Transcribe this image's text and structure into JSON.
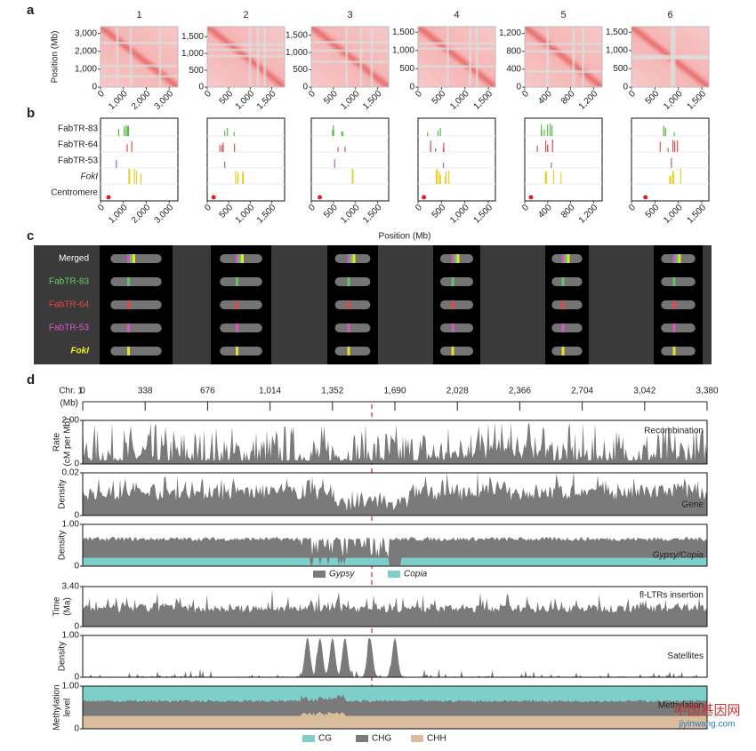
{
  "panel_a": {
    "label": "a",
    "y_label": "Position (Mb)",
    "plots": [
      {
        "title": "1",
        "lim": [
          0,
          3380
        ],
        "ticks": [
          0,
          {
            "value": 1000,
            "label": "1,000"
          },
          {
            "value": 2000,
            "label": "2,000"
          },
          {
            "value": 3000,
            "label": "3,000"
          }
        ]
      },
      {
        "title": "2",
        "lim": [
          0,
          1800
        ],
        "ticks": [
          0,
          500,
          {
            "value": 1000,
            "label": "1,000"
          },
          {
            "value": 1500,
            "label": "1,500"
          }
        ]
      },
      {
        "title": "3",
        "lim": [
          0,
          1750
        ],
        "ticks": [
          0,
          500,
          {
            "value": 1000,
            "label": "1,000"
          },
          {
            "value": 1500,
            "label": "1,500"
          }
        ]
      },
      {
        "title": "4",
        "lim": [
          0,
          1650
        ],
        "ticks": [
          0,
          500,
          {
            "value": 1000,
            "label": "1,000"
          },
          {
            "value": 1500,
            "label": "1,500"
          }
        ]
      },
      {
        "title": "5",
        "lim": [
          0,
          1350
        ],
        "ticks": [
          0,
          400,
          800,
          {
            "value": 1200,
            "label": "1,200"
          }
        ]
      },
      {
        "title": "6",
        "lim": [
          0,
          1650
        ],
        "ticks": [
          0,
          500,
          {
            "value": 1000,
            "label": "1,000"
          },
          {
            "value": 1500,
            "label": "1,500"
          }
        ]
      }
    ]
  },
  "panel_b": {
    "label": "b",
    "rows": [
      "FabTR-83",
      "FabTR-64",
      "FabTR-53",
      "FokI",
      "Centromere"
    ],
    "x_label": "Position (Mb)"
  },
  "panel_c": {
    "label": "c",
    "rows": [
      "Merged",
      "FabTR-83",
      "FabTR-64",
      "FabTR-53",
      "FokI"
    ]
  },
  "panel_d": {
    "label": "d",
    "chr": "Chr. 1",
    "unit": "(Mb)",
    "xlim": [
      0,
      3380
    ],
    "xticks": [
      0,
      338,
      676,
      {
        "value": 1014,
        "label": "1,014"
      },
      {
        "value": 1352,
        "label": "1,352"
      },
      {
        "value": 1690,
        "label": "1,690"
      },
      {
        "value": 2028,
        "label": "2,028"
      },
      {
        "value": 2366,
        "label": "2,366"
      },
      {
        "value": 2704,
        "label": "2,704"
      },
      {
        "value": 3042,
        "label": "3,042"
      },
      {
        "value": 3380,
        "label": "3,380"
      }
    ],
    "tracks": [
      {
        "y_label": [
          "Rate",
          "(cM per Mb)"
        ],
        "name": "Recombination",
        "ylim": [
          0,
          2
        ],
        "yticks": [
          0,
          {
            "value": 2,
            "label": "2.00"
          }
        ]
      },
      {
        "y_label": [
          "Density"
        ],
        "name": "Gene",
        "ylim": [
          0,
          0.02
        ],
        "yticks": [
          0,
          0.02
        ]
      },
      {
        "y_label": [
          "Density"
        ],
        "name": "Gypsy/Copia",
        "ylim": [
          0,
          1
        ],
        "yticks": [
          0,
          {
            "value": 1,
            "label": "1.00"
          }
        ]
      },
      {
        "y_label": [
          "Time",
          "(Ma)"
        ],
        "name": "fl-LTRs insertion",
        "ylim": [
          0,
          3.4
        ],
        "yticks": [
          0,
          {
            "value": 3.4,
            "label": "3.40"
          }
        ]
      },
      {
        "y_label": [
          "Density"
        ],
        "name": "Satellites",
        "ylim": [
          0,
          1
        ],
        "yticks": [
          0,
          {
            "value": 1,
            "label": "1.00"
          }
        ]
      },
      {
        "y_label": [
          "Methylation",
          "level"
        ],
        "name": "Methylation",
        "ylim": [
          0,
          1
        ],
        "yticks": [
          0,
          {
            "value": 1,
            "label": "1.00"
          }
        ]
      }
    ],
    "legend_te": [
      "Gypsy",
      "Copia"
    ],
    "legend_meth": [
      "CG",
      "CHG",
      "CHH"
    ]
  },
  "watermark": [
    "中国基因网",
    "jiyinwang.com"
  ]
}
